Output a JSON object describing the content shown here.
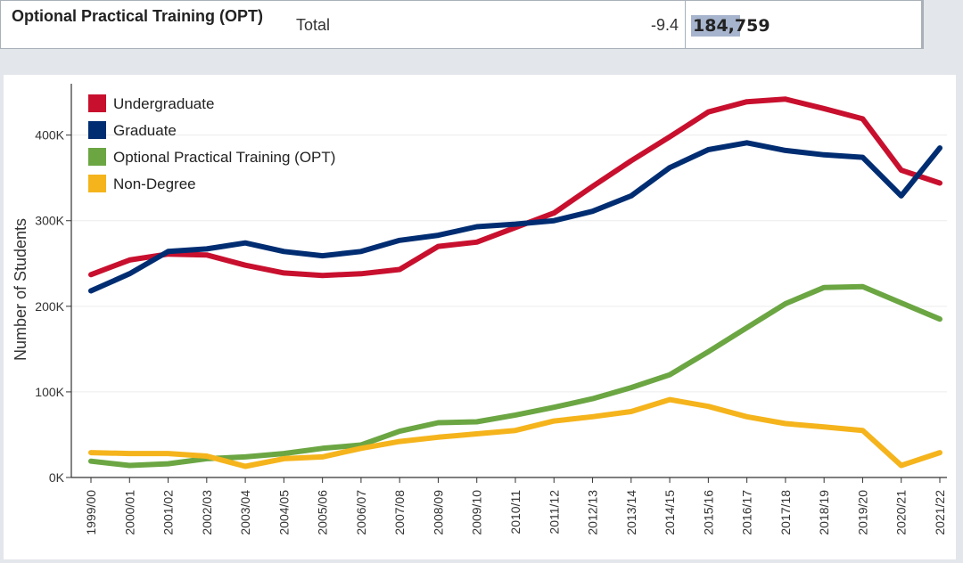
{
  "table_row": {
    "label": "Optional Practical Training (OPT)",
    "type": "Total",
    "change": "-9.4",
    "value": "184,759"
  },
  "chart_data": {
    "type": "line",
    "title": "",
    "xlabel": "",
    "ylabel": "Number of Students",
    "ylim": [
      0,
      460000
    ],
    "yticks": [
      0,
      100000,
      200000,
      300000,
      400000
    ],
    "ytick_labels": [
      "0K",
      "100K",
      "200K",
      "300K",
      "400K"
    ],
    "grid": true,
    "legend_position": "top-left",
    "categories": [
      "1999/00",
      "2000/01",
      "2001/02",
      "2002/03",
      "2003/04",
      "2004/05",
      "2005/06",
      "2006/07",
      "2007/08",
      "2008/09",
      "2009/10",
      "2010/11",
      "2011/12",
      "2012/13",
      "2013/14",
      "2014/15",
      "2015/16",
      "2016/17",
      "2017/18",
      "2018/19",
      "2019/20",
      "2020/21",
      "2021/22"
    ],
    "series": [
      {
        "name": "Undergraduate",
        "color": "#c8102e",
        "values": [
          237000,
          254000,
          261000,
          260000,
          248000,
          239000,
          236000,
          238000,
          243000,
          270000,
          275000,
          292000,
          309000,
          340000,
          370000,
          398000,
          427000,
          439000,
          442000,
          431000,
          419000,
          359000,
          344000
        ]
      },
      {
        "name": "Graduate",
        "color": "#002d72",
        "values": [
          218000,
          238000,
          264000,
          267000,
          274000,
          264000,
          259000,
          264000,
          277000,
          283000,
          293000,
          296000,
          300000,
          311000,
          329000,
          362000,
          383000,
          391000,
          382000,
          377000,
          374000,
          329000,
          385000
        ]
      },
      {
        "name": "Optional Practical Training (OPT)",
        "color": "#6ba643",
        "values": [
          19000,
          14000,
          16000,
          22000,
          24000,
          28000,
          34000,
          38000,
          54000,
          64000,
          65000,
          73000,
          82000,
          92000,
          105000,
          120000,
          147000,
          175000,
          203000,
          222000,
          223000,
          204000,
          185000
        ]
      },
      {
        "name": "Non-Degree",
        "color": "#f5b41c",
        "values": [
          29000,
          28000,
          28000,
          25000,
          13000,
          22000,
          24000,
          34000,
          42000,
          47000,
          51000,
          55000,
          66000,
          71000,
          77000,
          91000,
          83000,
          71000,
          63000,
          59000,
          55000,
          14000,
          29000
        ]
      }
    ]
  }
}
